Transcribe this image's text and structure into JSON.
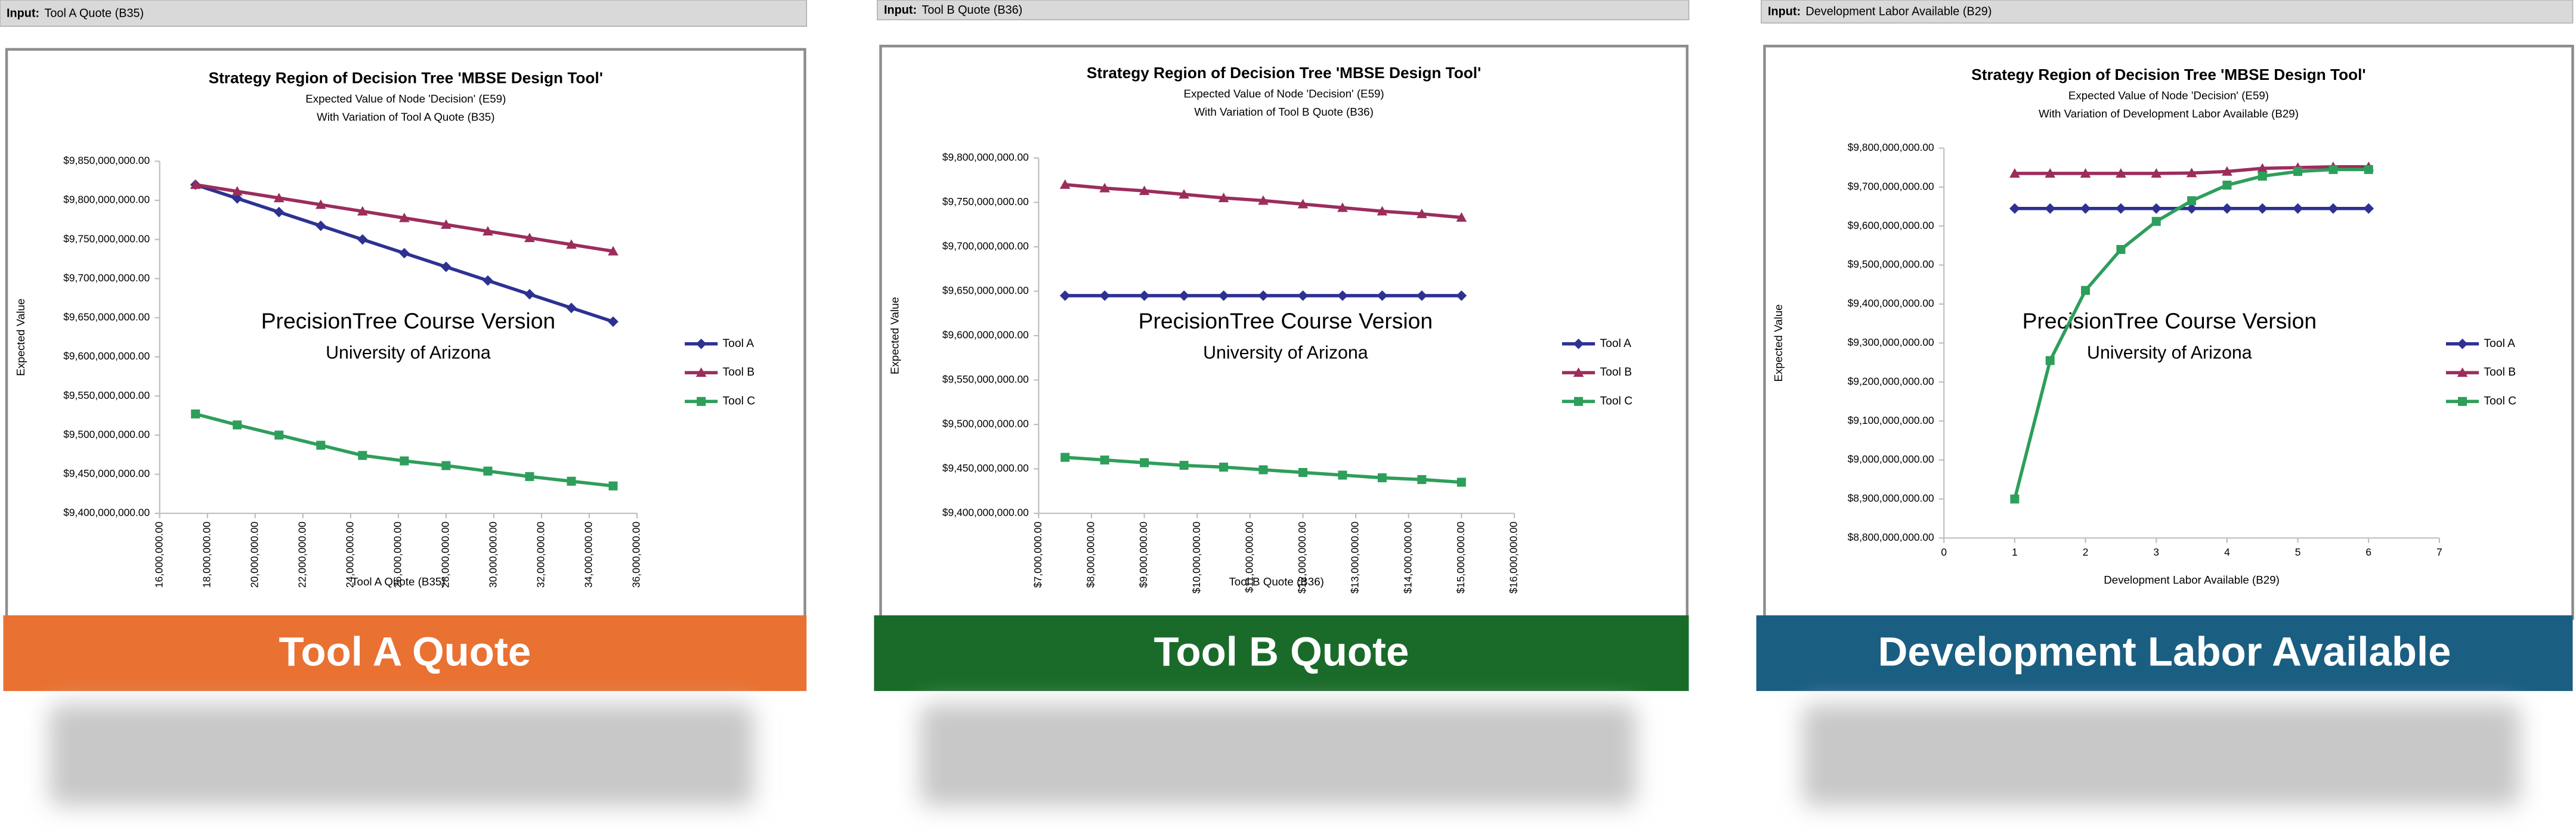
{
  "chart_data": [
    {
      "type": "line",
      "input_label": "Input:",
      "input_value": "Tool A Quote (B35)",
      "title": "Strategy Region of Decision Tree 'MBSE Design Tool'",
      "subtitle": [
        "Expected Value of Node 'Decision' (E59)",
        "With Variation of Tool A Quote (B35)"
      ],
      "watermark": [
        "PrecisionTree Course Version",
        "University of Arizona"
      ],
      "xlabel": "Tool A Quote (B35)",
      "ylabel": "Expected Value",
      "banner": "Tool A Quote",
      "banner_color": "#e97132",
      "x": [
        17500000,
        19250000,
        21000000,
        22750000,
        24500000,
        26250000,
        28000000,
        29750000,
        31500000,
        33250000,
        35000000
      ],
      "series": [
        {
          "name": "Tool A",
          "color": "#2e3192",
          "marker": "diamond",
          "values": [
            9820000000,
            9802500000,
            9785000000,
            9767500000,
            9750000000,
            9732500000,
            9715000000,
            9697500000,
            9680000000,
            9662500000,
            9645000000
          ]
        },
        {
          "name": "Tool B",
          "color": "#9b2d5c",
          "marker": "triangle",
          "values": [
            9820000000,
            9811500000,
            9803000000,
            9794500000,
            9786000000,
            9777500000,
            9769000000,
            9760500000,
            9752000000,
            9743500000,
            9735000000
          ]
        },
        {
          "name": "Tool C",
          "color": "#2e9e5b",
          "marker": "square",
          "values": [
            9527000000,
            9513000000,
            9500000000,
            9487000000,
            9474000000,
            9467000000,
            9461000000,
            9454000000,
            9447000000,
            9441000000,
            9435000000
          ]
        }
      ],
      "xlim": [
        16000000,
        36000000
      ],
      "xticks": [
        {
          "value": 16000000,
          "label": "16,000,000.00"
        },
        {
          "value": 18000000,
          "label": "18,000,000.00"
        },
        {
          "value": 20000000,
          "label": "20,000,000.00"
        },
        {
          "value": 22000000,
          "label": "22,000,000.00"
        },
        {
          "value": 24000000,
          "label": "24,000,000.00"
        },
        {
          "value": 26000000,
          "label": "26,000,000.00"
        },
        {
          "value": 28000000,
          "label": "28,000,000.00"
        },
        {
          "value": 30000000,
          "label": "30,000,000.00"
        },
        {
          "value": 32000000,
          "label": "32,000,000.00"
        },
        {
          "value": 34000000,
          "label": "34,000,000.00"
        },
        {
          "value": 36000000,
          "label": "36,000,000.00"
        }
      ],
      "ylim": [
        9400000000,
        9850000000
      ],
      "yticks": [
        {
          "value": 9400000000,
          "label": "$9,400,000,000.00"
        },
        {
          "value": 9450000000,
          "label": "$9,450,000,000.00"
        },
        {
          "value": 9500000000,
          "label": "$9,500,000,000.00"
        },
        {
          "value": 9550000000,
          "label": "$9,550,000,000.00"
        },
        {
          "value": 9600000000,
          "label": "$9,600,000,000.00"
        },
        {
          "value": 9650000000,
          "label": "$9,650,000,000.00"
        },
        {
          "value": 9700000000,
          "label": "$9,700,000,000.00"
        },
        {
          "value": 9750000000,
          "label": "$9,750,000,000.00"
        },
        {
          "value": 9800000000,
          "label": "$9,800,000,000.00"
        },
        {
          "value": 9850000000,
          "label": "$9,850,000,000.00"
        }
      ],
      "grid": false,
      "legend": "right"
    },
    {
      "type": "line",
      "input_label": "Input:",
      "input_value": "Tool B Quote (B36)",
      "title": "Strategy Region of Decision Tree 'MBSE Design Tool'",
      "subtitle": [
        "Expected Value of Node 'Decision' (E59)",
        "With Variation of Tool B Quote (B36)"
      ],
      "watermark": [
        "PrecisionTree Course Version",
        "University of Arizona"
      ],
      "xlabel": "Tool B Quote (B36)",
      "ylabel": "Expected Value",
      "banner": "Tool B Quote",
      "banner_color": "#1a6b2a",
      "x": [
        7500000,
        8250000,
        9000000,
        9750000,
        10500000,
        11250000,
        12000000,
        12750000,
        13500000,
        14250000,
        15000000
      ],
      "series": [
        {
          "name": "Tool A",
          "color": "#2e3192",
          "marker": "diamond",
          "values": [
            9645000000,
            9645000000,
            9645000000,
            9645000000,
            9645000000,
            9645000000,
            9645000000,
            9645000000,
            9645000000,
            9645000000,
            9645000000
          ]
        },
        {
          "name": "Tool B",
          "color": "#9b2d5c",
          "marker": "triangle",
          "values": [
            9770000000,
            9766000000,
            9763000000,
            9759000000,
            9755000000,
            9752000000,
            9748000000,
            9744000000,
            9740000000,
            9737000000,
            9733000000
          ]
        },
        {
          "name": "Tool C",
          "color": "#2e9e5b",
          "marker": "square",
          "values": [
            9463000000,
            9460000000,
            9457000000,
            9454000000,
            9452000000,
            9449000000,
            9446000000,
            9443000000,
            9440000000,
            9438000000,
            9435000000
          ]
        }
      ],
      "xlim": [
        7000000,
        16000000
      ],
      "xticks": [
        {
          "value": 7000000,
          "label": "$7,000,000.00"
        },
        {
          "value": 8000000,
          "label": "$8,000,000.00"
        },
        {
          "value": 9000000,
          "label": "$9,000,000.00"
        },
        {
          "value": 10000000,
          "label": "$10,000,000.00"
        },
        {
          "value": 11000000,
          "label": "$11,000,000.00"
        },
        {
          "value": 12000000,
          "label": "$12,000,000.00"
        },
        {
          "value": 13000000,
          "label": "$13,000,000.00"
        },
        {
          "value": 14000000,
          "label": "$14,000,000.00"
        },
        {
          "value": 15000000,
          "label": "$15,000,000.00"
        },
        {
          "value": 16000000,
          "label": "$16,000,000.00"
        }
      ],
      "ylim": [
        9400000000,
        9800000000
      ],
      "yticks": [
        {
          "value": 9400000000,
          "label": "$9,400,000,000.00"
        },
        {
          "value": 9450000000,
          "label": "$9,450,000,000.00"
        },
        {
          "value": 9500000000,
          "label": "$9,500,000,000.00"
        },
        {
          "value": 9550000000,
          "label": "$9,550,000,000.00"
        },
        {
          "value": 9600000000,
          "label": "$9,600,000,000.00"
        },
        {
          "value": 9650000000,
          "label": "$9,650,000,000.00"
        },
        {
          "value": 9700000000,
          "label": "$9,700,000,000.00"
        },
        {
          "value": 9750000000,
          "label": "$9,750,000,000.00"
        },
        {
          "value": 9800000000,
          "label": "$9,800,000,000.00"
        }
      ],
      "grid": false,
      "legend": "right"
    },
    {
      "type": "line",
      "input_label": "Input:",
      "input_value": "Development Labor Available (B29)",
      "title": "Strategy Region of Decision Tree 'MBSE Design Tool'",
      "subtitle": [
        "Expected Value of Node 'Decision' (E59)",
        "With Variation of Development Labor Available (B29)"
      ],
      "watermark": [
        "PrecisionTree Course Version",
        "University of Arizona"
      ],
      "xlabel": "Development Labor Available (B29)",
      "ylabel": "Expected Value",
      "banner": "Development Labor Available",
      "banner_color": "#1a5e82",
      "x": [
        1,
        1.5,
        2,
        2.5,
        3,
        3.5,
        4,
        4.5,
        5,
        5.5,
        6
      ],
      "series": [
        {
          "name": "Tool A",
          "color": "#2e3192",
          "marker": "diamond",
          "values": [
            9645000000,
            9645000000,
            9645000000,
            9645000000,
            9645000000,
            9645000000,
            9645000000,
            9645000000,
            9645000000,
            9645000000,
            9645000000
          ]
        },
        {
          "name": "Tool B",
          "color": "#9b2d5c",
          "marker": "triangle",
          "values": [
            9735000000,
            9735000000,
            9735000000,
            9735000000,
            9735000000,
            9736000000,
            9740000000,
            9748000000,
            9750000000,
            9752000000,
            9752000000
          ]
        },
        {
          "name": "Tool C",
          "color": "#2e9e5b",
          "marker": "square",
          "values": [
            8900000000,
            9255000000,
            9435000000,
            9540000000,
            9612000000,
            9665000000,
            9705000000,
            9728000000,
            9740000000,
            9745000000,
            9745000000
          ]
        }
      ],
      "xlim": [
        0,
        7
      ],
      "xticks": [
        0,
        1,
        2,
        3,
        4,
        5,
        6,
        7
      ],
      "ylim": [
        8800000000,
        9800000000
      ],
      "yticks": [
        {
          "value": 8800000000,
          "label": "$8,800,000,000.00"
        },
        {
          "value": 8900000000,
          "label": "$8,900,000,000.00"
        },
        {
          "value": 9000000000,
          "label": "$9,000,000,000.00"
        },
        {
          "value": 9100000000,
          "label": "$9,100,000,000.00"
        },
        {
          "value": 9200000000,
          "label": "$9,200,000,000.00"
        },
        {
          "value": 9300000000,
          "label": "$9,300,000,000.00"
        },
        {
          "value": 9400000000,
          "label": "$9,400,000,000.00"
        },
        {
          "value": 9500000000,
          "label": "$9,500,000,000.00"
        },
        {
          "value": 9600000000,
          "label": "$9,600,000,000.00"
        },
        {
          "value": 9700000000,
          "label": "$9,700,000,000.00"
        },
        {
          "value": 9800000000,
          "label": "$9,800,000,000.00"
        }
      ],
      "grid": false,
      "legend": "right"
    }
  ]
}
